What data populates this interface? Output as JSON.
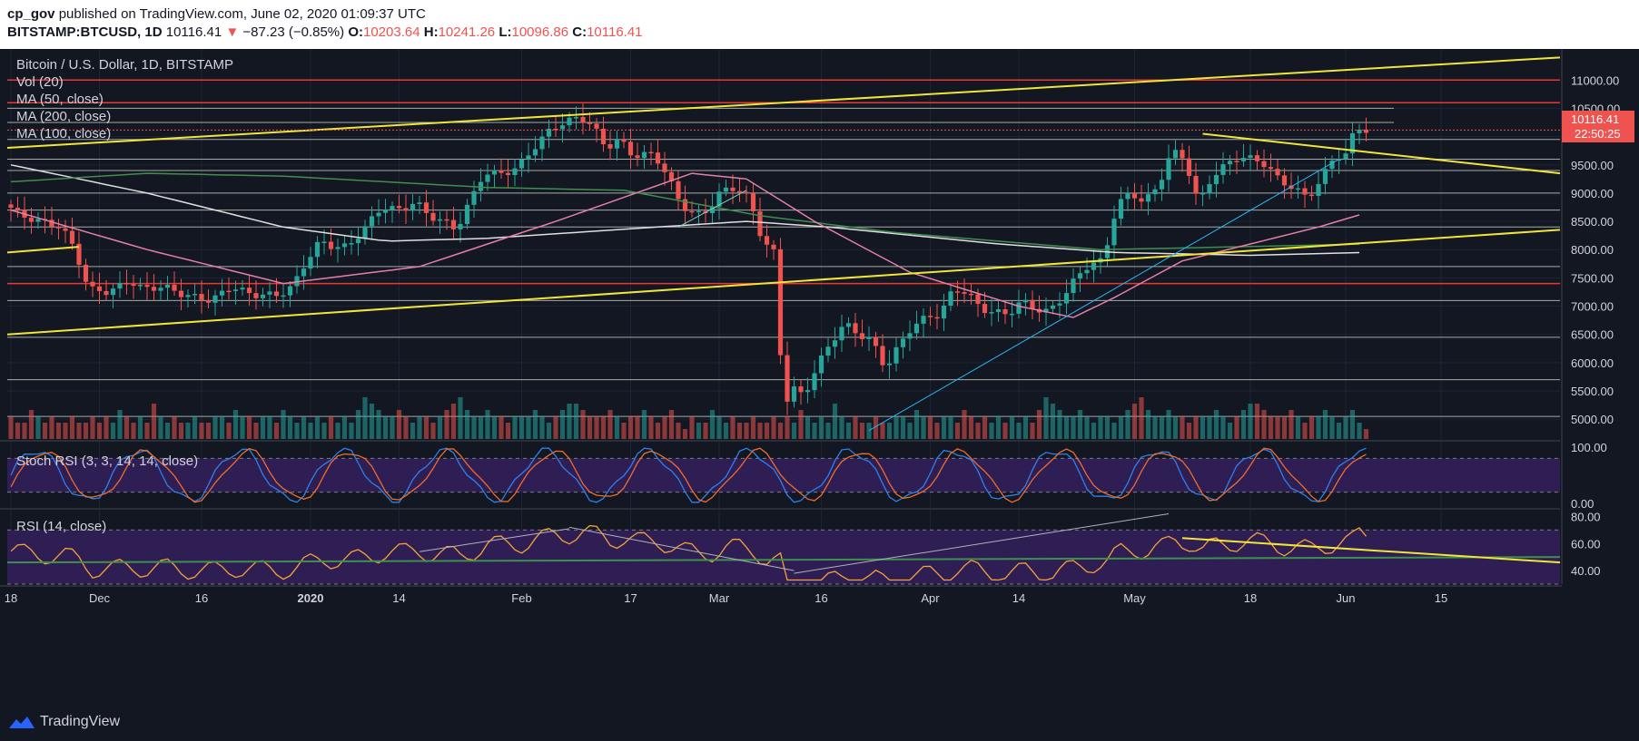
{
  "header": {
    "publisher": "cp_gov",
    "published_text": "published on TradingView.com, June 02, 2020 01:09:37 UTC",
    "symbol": "BITSTAMP:BTCUSD, 1D",
    "price": "10116.41",
    "change": "−87.23 (−0.85%)",
    "open_label": "O:",
    "open": "10203.64",
    "high_label": "H:",
    "high": "10241.26",
    "low_label": "L:",
    "low": "10096.86",
    "close_label": "C:",
    "close": "10116.41"
  },
  "legend": [
    "Bitcoin / U.S. Dollar, 1D, BITSTAMP",
    "Vol (20)",
    "MA (50, close)",
    "MA (200, close)",
    "MA (100, close)"
  ],
  "price_tag": {
    "price": "10116.41",
    "countdown": "22:50:25"
  },
  "brand": "TradingView",
  "colors": {
    "up": "#26a69a",
    "down": "#ef5350",
    "ma50": "#e57fa8",
    "ma200": "#e0e0e0",
    "ma100": "#3f8f4f",
    "trend": "#f2e53a",
    "hline": "#c9d1c9",
    "redline": "#e53935",
    "stoch_k": "#2f80ed",
    "stoch_d": "#ef6c2f",
    "rsi": "#f4a23a",
    "panel_fill": "#2f1e53",
    "bg": "#131722"
  },
  "chart_data": [
    {
      "type": "candlestick",
      "title": "Bitcoin / U.S. Dollar, 1D, BITSTAMP",
      "ylim": [
        4650,
        11550
      ],
      "y_ticks": [
        "11000.00",
        "10500.00",
        "10000.00",
        "9500.00",
        "9000.00",
        "8500.00",
        "8000.00",
        "7500.00",
        "7000.00",
        "6500.00",
        "6000.00",
        "5500.00",
        "5000.00"
      ],
      "y_tick_values": [
        11000,
        10500,
        10000,
        9500,
        9000,
        8500,
        8000,
        7500,
        7000,
        6500,
        6000,
        5500,
        5000
      ],
      "x_ticks": [
        "18",
        "Dec",
        "16",
        "2020",
        "14",
        "Feb",
        "17",
        "Mar",
        "16",
        "Apr",
        "14",
        "May",
        "18",
        "Jun",
        "15"
      ],
      "x_tick_days": [
        0,
        13,
        28,
        44,
        57,
        75,
        91,
        104,
        119,
        135,
        148,
        165,
        182,
        196,
        210
      ],
      "anchors": [
        [
          0,
          8800
        ],
        [
          2,
          8600
        ],
        [
          5,
          8500
        ],
        [
          8,
          8400
        ],
        [
          10,
          8000
        ],
        [
          12,
          7300
        ],
        [
          15,
          7250
        ],
        [
          18,
          7450
        ],
        [
          20,
          7300
        ],
        [
          23,
          7350
        ],
        [
          26,
          7200
        ],
        [
          30,
          7100
        ],
        [
          33,
          7350
        ],
        [
          36,
          7200
        ],
        [
          40,
          7200
        ],
        [
          42,
          7350
        ],
        [
          44,
          7800
        ],
        [
          46,
          8150
        ],
        [
          48,
          8050
        ],
        [
          50,
          8050
        ],
        [
          52,
          8300
        ],
        [
          55,
          8750
        ],
        [
          58,
          8700
        ],
        [
          60,
          8850
        ],
        [
          62,
          8600
        ],
        [
          65,
          8450
        ],
        [
          66,
          8350
        ],
        [
          68,
          8850
        ],
        [
          70,
          9350
        ],
        [
          73,
          9350
        ],
        [
          75,
          9450
        ],
        [
          77,
          9750
        ],
        [
          80,
          10150
        ],
        [
          82,
          10250
        ],
        [
          84,
          10350
        ],
        [
          86,
          10200
        ],
        [
          88,
          9800
        ],
        [
          90,
          9950
        ],
        [
          92,
          9650
        ],
        [
          95,
          9700
        ],
        [
          97,
          9300
        ],
        [
          99,
          8800
        ],
        [
          101,
          8600
        ],
        [
          103,
          8700
        ],
        [
          105,
          9050
        ],
        [
          107,
          9100
        ],
        [
          109,
          8900
        ],
        [
          111,
          8150
        ],
        [
          113,
          7900
        ],
        [
          114,
          5000
        ],
        [
          115,
          5600
        ],
        [
          117,
          5400
        ],
        [
          119,
          5950
        ],
        [
          121,
          6350
        ],
        [
          123,
          6700
        ],
        [
          125,
          6500
        ],
        [
          127,
          6400
        ],
        [
          129,
          5900
        ],
        [
          131,
          6300
        ],
        [
          133,
          6650
        ],
        [
          135,
          6800
        ],
        [
          137,
          6850
        ],
        [
          139,
          7300
        ],
        [
          141,
          7250
        ],
        [
          143,
          6950
        ],
        [
          145,
          6900
        ],
        [
          147,
          6850
        ],
        [
          149,
          7100
        ],
        [
          151,
          6950
        ],
        [
          153,
          6900
        ],
        [
          155,
          7150
        ],
        [
          157,
          7500
        ],
        [
          159,
          7750
        ],
        [
          161,
          7800
        ],
        [
          163,
          8800
        ],
        [
          165,
          9000
        ],
        [
          167,
          8850
        ],
        [
          169,
          9100
        ],
        [
          171,
          9750
        ],
        [
          173,
          9600
        ],
        [
          175,
          8800
        ],
        [
          177,
          9300
        ],
        [
          179,
          9500
        ],
        [
          181,
          9650
        ],
        [
          183,
          9600
        ],
        [
          185,
          9500
        ],
        [
          187,
          9200
        ],
        [
          189,
          9100
        ],
        [
          191,
          8900
        ],
        [
          193,
          9250
        ],
        [
          195,
          9650
        ],
        [
          197,
          9700
        ],
        [
          198,
          10200
        ],
        [
          199,
          10116
        ]
      ],
      "ma50": [
        [
          0,
          8700
        ],
        [
          20,
          8000
        ],
        [
          40,
          7400
        ],
        [
          60,
          7700
        ],
        [
          80,
          8500
        ],
        [
          100,
          9350
        ],
        [
          108,
          9250
        ],
        [
          118,
          8500
        ],
        [
          132,
          7600
        ],
        [
          148,
          7000
        ],
        [
          156,
          6800
        ],
        [
          162,
          7150
        ],
        [
          172,
          7800
        ],
        [
          182,
          8100
        ],
        [
          192,
          8400
        ],
        [
          199,
          8650
        ]
      ],
      "ma200": [
        [
          0,
          9500
        ],
        [
          20,
          9000
        ],
        [
          40,
          8400
        ],
        [
          55,
          8150
        ],
        [
          70,
          8200
        ],
        [
          95,
          8400
        ],
        [
          108,
          8500
        ],
        [
          120,
          8400
        ],
        [
          145,
          8100
        ],
        [
          162,
          7950
        ],
        [
          182,
          7900
        ],
        [
          199,
          7950
        ]
      ],
      "ma100": [
        [
          0,
          9200
        ],
        [
          20,
          9350
        ],
        [
          40,
          9300
        ],
        [
          70,
          9100
        ],
        [
          90,
          9050
        ],
        [
          110,
          8600
        ],
        [
          130,
          8300
        ],
        [
          160,
          8000
        ],
        [
          180,
          8050
        ],
        [
          199,
          8100
        ]
      ],
      "volume": {
        "ylim": [
          0,
          10
        ],
        "pattern": [
          3,
          2,
          2,
          4,
          3,
          2,
          3,
          2,
          2,
          3,
          2,
          2,
          3,
          2,
          3,
          2,
          4,
          3,
          2,
          3,
          2,
          5,
          3,
          2,
          3,
          2,
          2,
          3,
          2,
          2,
          3,
          3,
          2,
          4,
          3,
          3,
          2,
          3,
          3,
          2,
          4,
          3,
          2,
          3,
          2,
          3,
          2,
          3,
          2,
          3,
          2,
          4,
          6,
          5,
          4,
          3,
          3,
          4,
          3,
          2,
          3,
          3,
          2,
          3,
          4,
          5,
          6,
          4,
          3,
          3,
          4,
          3,
          3,
          2,
          3,
          3,
          3,
          4,
          3,
          2,
          3,
          4,
          5,
          5,
          4,
          3,
          3,
          3,
          4,
          3,
          2,
          3,
          3,
          4,
          3,
          2,
          3,
          4,
          2,
          1
        ]
      }
    },
    {
      "type": "line",
      "title": "Stoch RSI (3, 3, 14, 14, close)",
      "ylim": [
        0,
        100
      ],
      "y_ticks": [
        "100.00",
        "0.00"
      ],
      "y_tick_values": [
        100,
        0
      ],
      "bands": [
        80,
        20
      ]
    },
    {
      "type": "line",
      "title": "RSI (14, close)",
      "ylim": [
        30,
        85
      ],
      "y_ticks": [
        "80.00",
        "60.00",
        "40.00"
      ],
      "y_tick_values": [
        80,
        60,
        40
      ],
      "bands": [
        70,
        30
      ]
    }
  ]
}
